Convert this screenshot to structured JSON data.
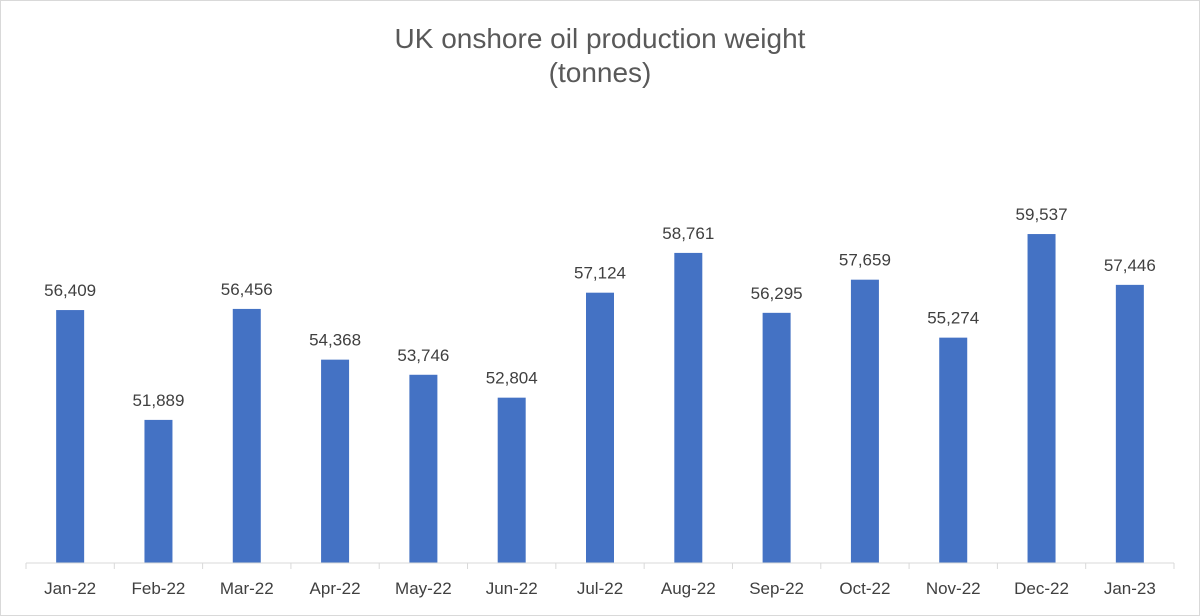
{
  "chart_data": {
    "type": "bar",
    "title": "UK onshore oil production weight",
    "subtitle": "(tonnes)",
    "categories": [
      "Jan-22",
      "Feb-22",
      "Mar-22",
      "Apr-22",
      "May-22",
      "Jun-22",
      "Jul-22",
      "Aug-22",
      "Sep-22",
      "Oct-22",
      "Nov-22",
      "Dec-22",
      "Jan-23"
    ],
    "values": [
      56409,
      51889,
      56456,
      54368,
      53746,
      52804,
      57124,
      58761,
      56295,
      57659,
      55274,
      59537,
      57446
    ],
    "data_labels": [
      "56,409",
      "51,889",
      "56,456",
      "54,368",
      "53,746",
      "52,804",
      "57,124",
      "58,761",
      "56,295",
      "57,659",
      "55,274",
      "59,537",
      "57,446"
    ],
    "xlabel": "",
    "ylabel": "",
    "ylim": [
      46000,
      61000
    ],
    "grid": false,
    "legend": "none",
    "bar_color": "#4472c4"
  }
}
